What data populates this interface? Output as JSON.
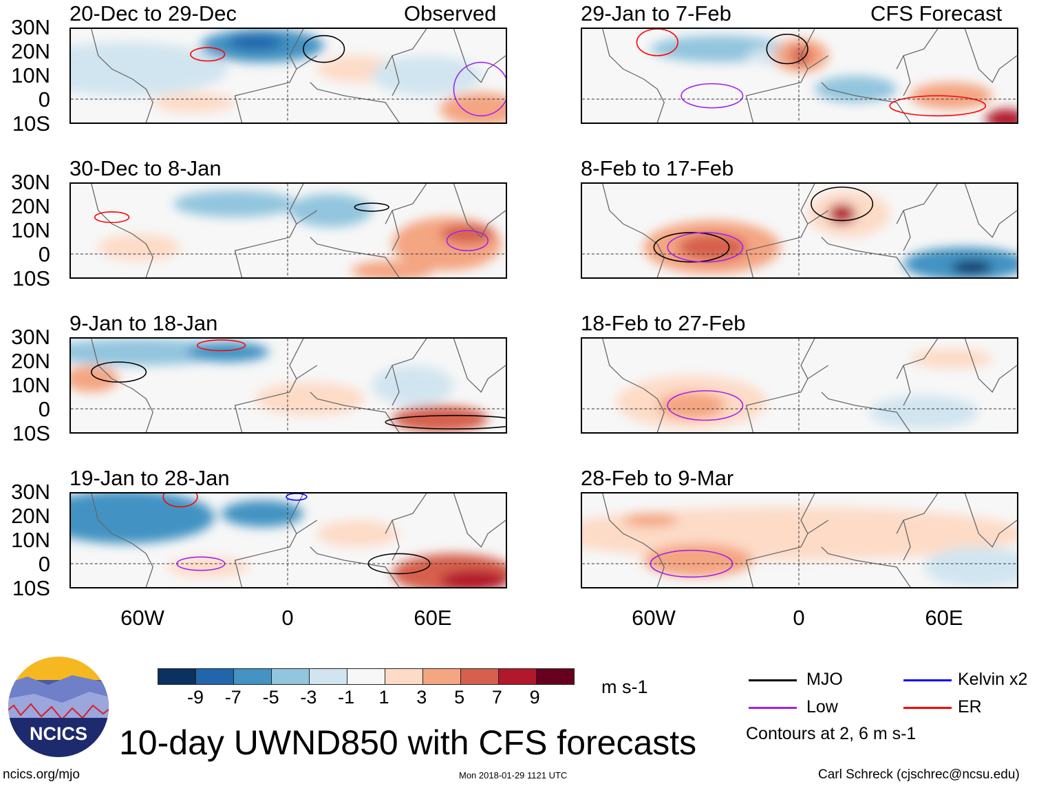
{
  "header": {
    "observed_label": "Observed",
    "forecast_label": "CFS Forecast"
  },
  "lat_labels": [
    "30N",
    "20N",
    "10N",
    "0",
    "10S"
  ],
  "lon_labels": [
    "60W",
    "0",
    "60E"
  ],
  "panels_left": [
    {
      "title": "20-Dec to 29-Dec"
    },
    {
      "title": "30-Dec to 8-Jan"
    },
    {
      "title": "9-Jan to 18-Jan"
    },
    {
      "title": "19-Jan to 28-Jan"
    }
  ],
  "panels_right": [
    {
      "title": "29-Jan to 7-Feb"
    },
    {
      "title": "8-Feb to 17-Feb"
    },
    {
      "title": "18-Feb to 27-Feb"
    },
    {
      "title": "28-Feb to 9-Mar"
    }
  ],
  "colorbar": {
    "colors": [
      "#0a3160",
      "#2166ac",
      "#4393c3",
      "#92c5de",
      "#d1e5f0",
      "#f7f7f7",
      "#fddbc7",
      "#f4a582",
      "#d6604d",
      "#b2182b",
      "#67001f"
    ],
    "labels": [
      "-9",
      "-7",
      "-5",
      "-3",
      "-1",
      "1",
      "3",
      "5",
      "7",
      "9"
    ],
    "units": "m s-1"
  },
  "legend": {
    "items": [
      {
        "label": "MJO",
        "color": "#000000"
      },
      {
        "label": "Kelvin x2",
        "color": "#0000ff"
      },
      {
        "label": "Low",
        "color": "#a020f0"
      },
      {
        "label": "ER",
        "color": "#ff0000"
      }
    ],
    "contours_note": "Contours at 2, 6 m s-1"
  },
  "title": "10-day UWND850 with CFS forecasts",
  "logo_text": "NCICS",
  "footer": {
    "url": "ncics.org/mjo",
    "timestamp": "Mon 2018-01-29 1121 UTC",
    "credit": "Carl Schreck (cjschrec@ncsu.edu)"
  }
}
